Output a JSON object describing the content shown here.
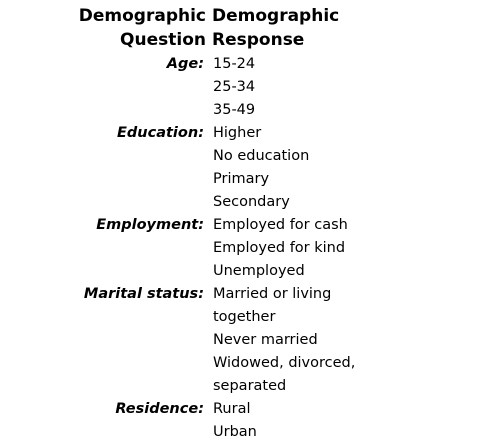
{
  "header": {
    "question_line1": "Demographic",
    "question_line2": "Question",
    "response_line1": "Demographic",
    "response_line2": "Response"
  },
  "rows": [
    {
      "question": "Age:",
      "response": "15-24"
    },
    {
      "question": "",
      "response": "25-34"
    },
    {
      "question": "",
      "response": "35-49"
    },
    {
      "question": "Education:",
      "response": "Higher"
    },
    {
      "question": "",
      "response": "No education"
    },
    {
      "question": "",
      "response": "Primary"
    },
    {
      "question": "",
      "response": "Secondary"
    },
    {
      "question": "Employment:",
      "response": "Employed for cash"
    },
    {
      "question": "",
      "response": "Employed for kind"
    },
    {
      "question": "",
      "response": "Unemployed"
    },
    {
      "question": "Marital status:",
      "response": "Married or living together"
    },
    {
      "question": "",
      "response": "Never married"
    },
    {
      "question": "",
      "response_line1": "Widowed, divorced,",
      "response_line2": "separated"
    },
    {
      "question": "Residence:",
      "response": "Rural"
    },
    {
      "question": "",
      "response": "Urban"
    }
  ]
}
